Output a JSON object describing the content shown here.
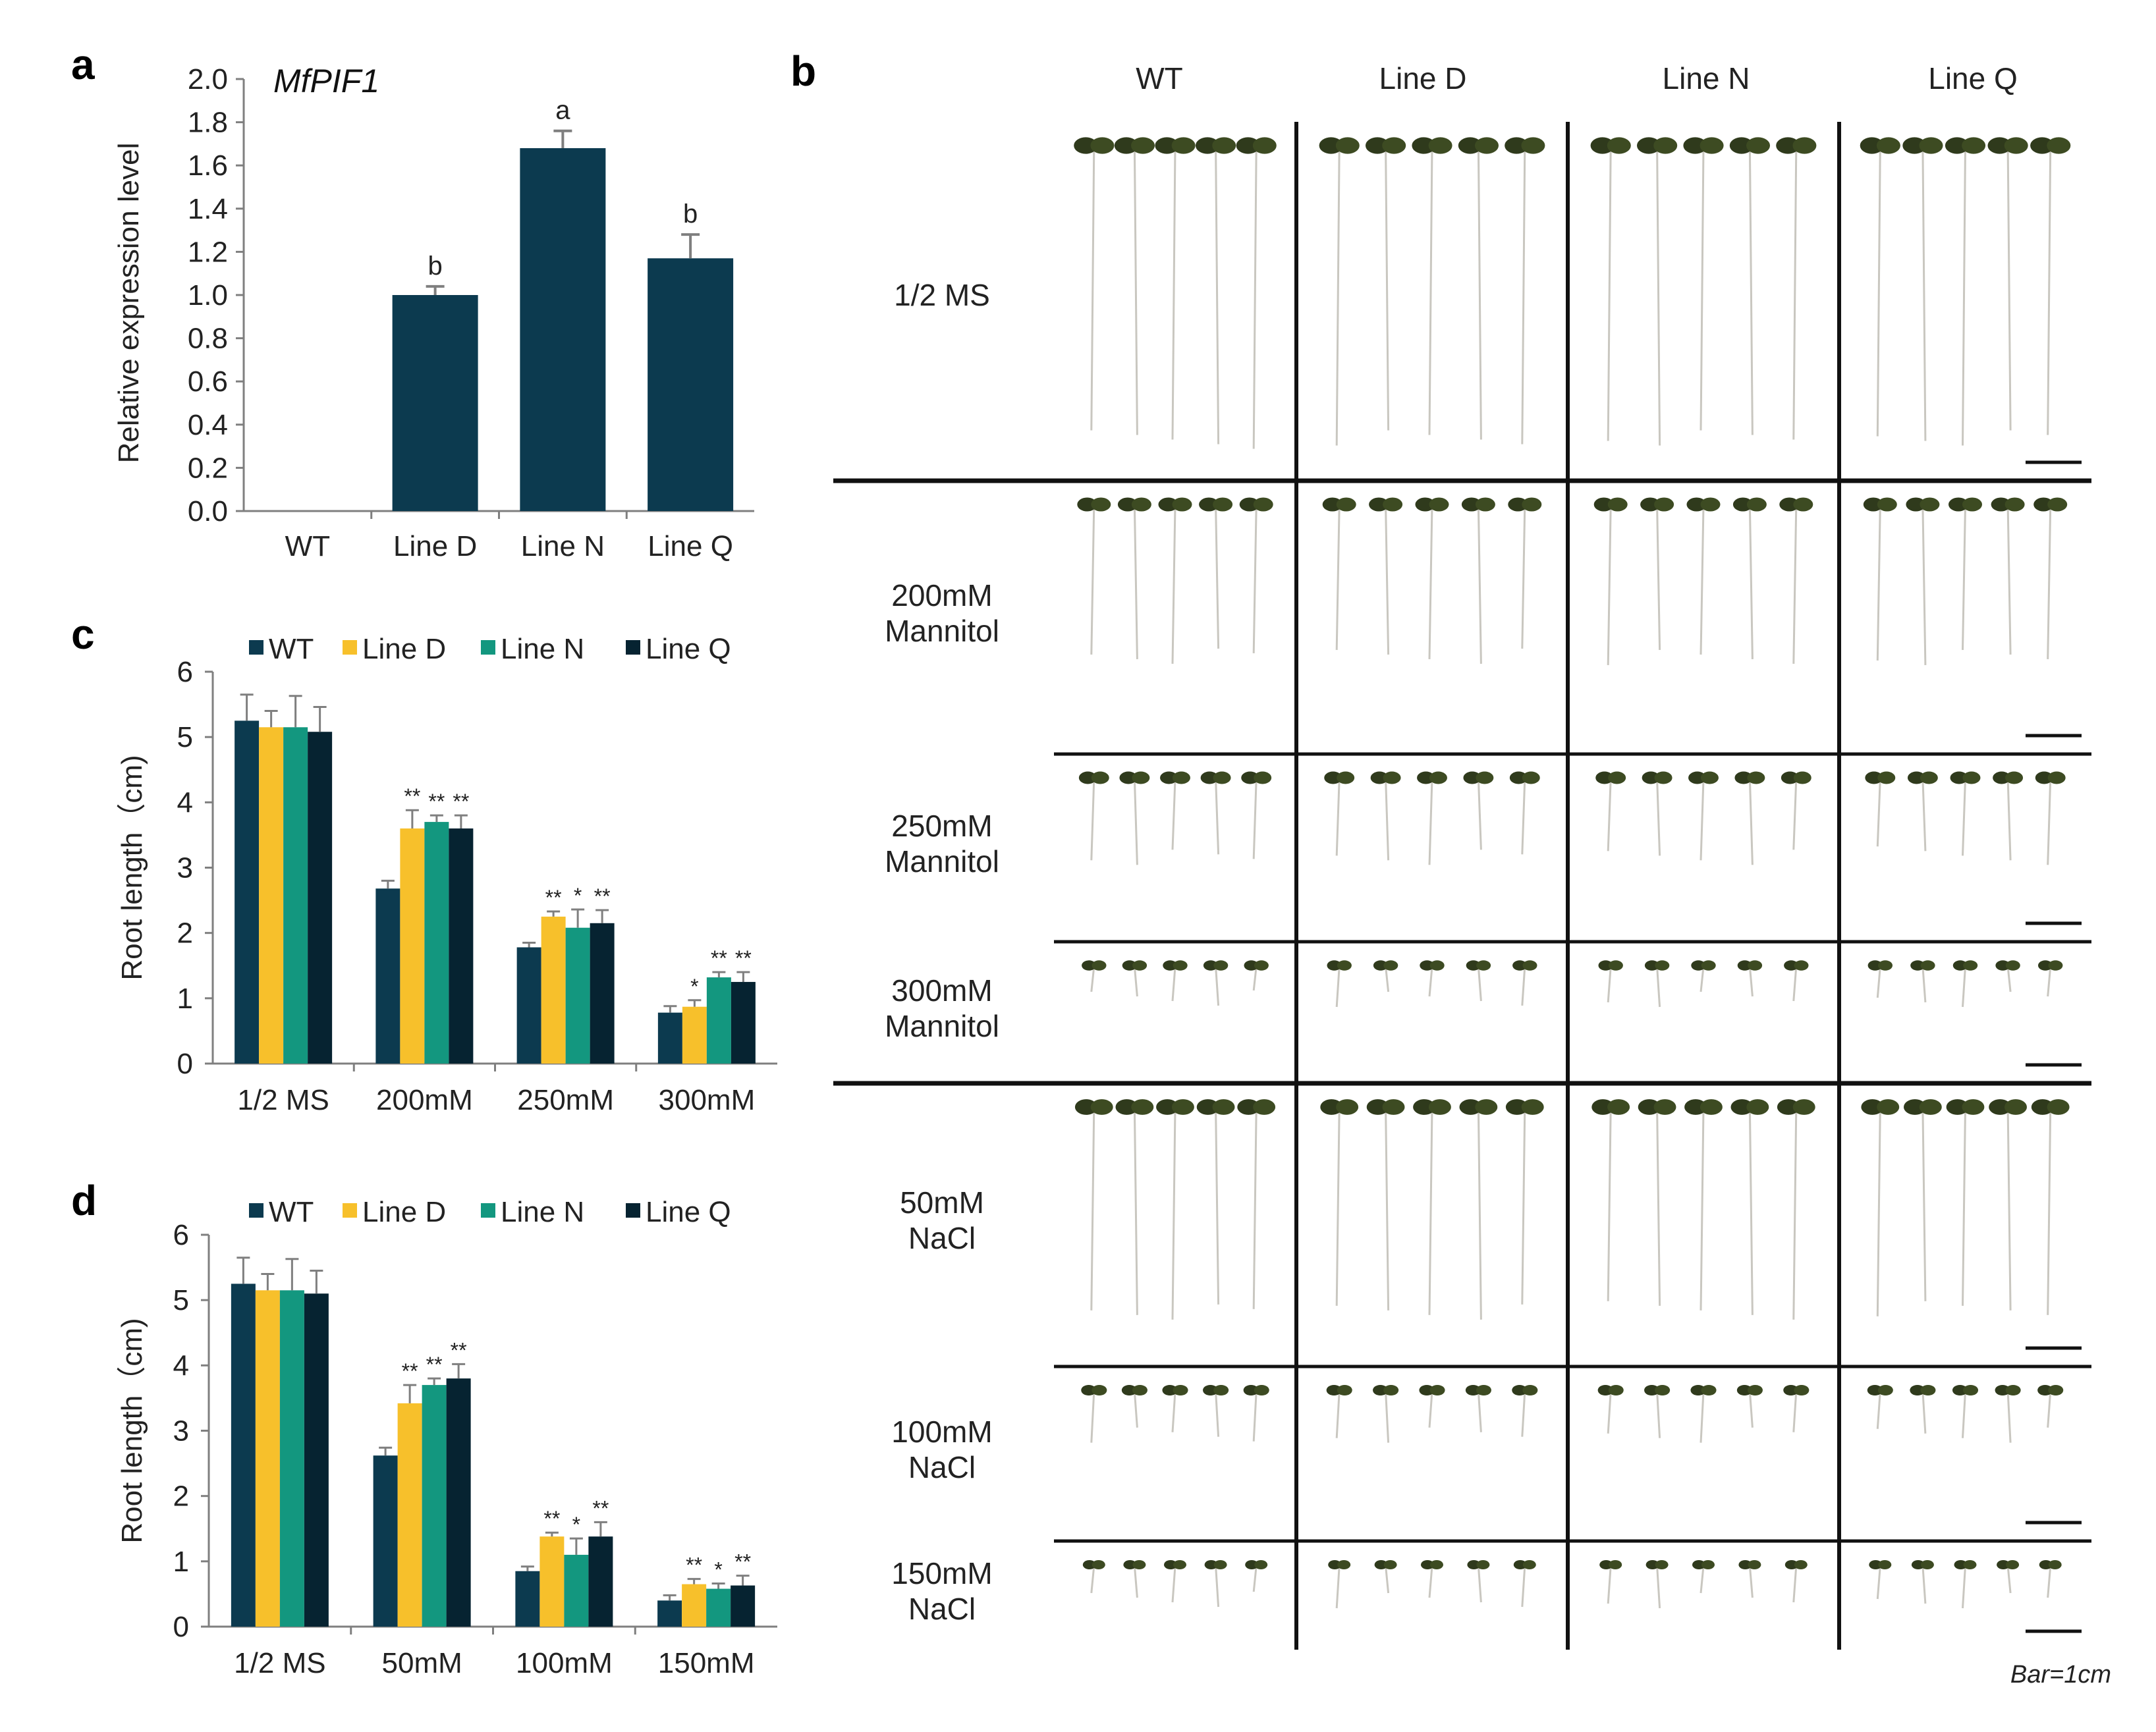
{
  "colors": {
    "wt": "#0c3a4f",
    "line_d": "#f7c02b",
    "line_n": "#13977f",
    "line_q": "#062331",
    "bar_single": "#0c3a4f",
    "axis": "#7f7f7f",
    "error": "#7f7f7f"
  },
  "panel_labels": {
    "a": "a",
    "b": "b",
    "c": "c",
    "d": "d"
  },
  "chart_data": [
    {
      "id": "a",
      "type": "bar",
      "title": "MfPIF1",
      "xlabel": "",
      "ylabel": "Relative expression level",
      "categories": [
        "WT",
        "Line D",
        "Line N",
        "Line Q"
      ],
      "values": [
        0.0,
        1.0,
        1.68,
        1.17
      ],
      "errors": [
        0.0,
        0.04,
        0.08,
        0.11
      ],
      "annotations": [
        "",
        "b",
        "a",
        "b"
      ],
      "ylim": [
        0,
        2.0
      ],
      "yticks": [
        "0.0",
        "0.2",
        "0.4",
        "0.6",
        "0.8",
        "1.0",
        "1.2",
        "1.4",
        "1.6",
        "1.8",
        "2.0"
      ],
      "grid": false
    },
    {
      "id": "c",
      "type": "bar",
      "xlabel": "",
      "ylabel": "Root length（cm)",
      "categories": [
        "1/2 MS",
        "200mM",
        "250mM",
        "300mM"
      ],
      "legend": [
        "WT",
        "Line D",
        "Line N",
        "Line Q"
      ],
      "legend_position": "top",
      "ylim": [
        0,
        6
      ],
      "yticks": [
        "0",
        "1",
        "2",
        "3",
        "4",
        "5",
        "6"
      ],
      "series": [
        {
          "name": "WT",
          "values": [
            5.25,
            2.68,
            1.78,
            0.78
          ],
          "errors": [
            0.4,
            0.12,
            0.07,
            0.1
          ],
          "sig": [
            "",
            "",
            "",
            ""
          ]
        },
        {
          "name": "Line D",
          "values": [
            5.15,
            3.6,
            2.25,
            0.87
          ],
          "errors": [
            0.25,
            0.28,
            0.08,
            0.1
          ],
          "sig": [
            "",
            "**",
            "**",
            "*"
          ]
        },
        {
          "name": "Line N",
          "values": [
            5.15,
            3.7,
            2.08,
            1.32
          ],
          "errors": [
            0.48,
            0.1,
            0.28,
            0.08
          ],
          "sig": [
            "",
            "**",
            "*",
            "**"
          ]
        },
        {
          "name": "Line Q",
          "values": [
            5.08,
            3.6,
            2.15,
            1.25
          ],
          "errors": [
            0.38,
            0.2,
            0.2,
            0.15
          ],
          "sig": [
            "",
            "**",
            "**",
            "**"
          ]
        }
      ],
      "grid": false
    },
    {
      "id": "d",
      "type": "bar",
      "xlabel": "",
      "ylabel": "Root length（cm)",
      "categories": [
        "1/2 MS",
        "50mM",
        "100mM",
        "150mM"
      ],
      "legend": [
        "WT",
        "Line D",
        "Line N",
        "Line Q"
      ],
      "legend_position": "top",
      "ylim": [
        0,
        6
      ],
      "yticks": [
        "0",
        "1",
        "2",
        "3",
        "4",
        "5",
        "6"
      ],
      "series": [
        {
          "name": "WT",
          "values": [
            5.25,
            2.62,
            0.85,
            0.4
          ],
          "errors": [
            0.4,
            0.12,
            0.07,
            0.08
          ],
          "sig": [
            "",
            "",
            "",
            ""
          ]
        },
        {
          "name": "Line D",
          "values": [
            5.15,
            3.42,
            1.38,
            0.65
          ],
          "errors": [
            0.25,
            0.28,
            0.06,
            0.08
          ],
          "sig": [
            "",
            "**",
            "**",
            "**"
          ]
        },
        {
          "name": "Line N",
          "values": [
            5.15,
            3.7,
            1.1,
            0.58
          ],
          "errors": [
            0.48,
            0.1,
            0.25,
            0.08
          ],
          "sig": [
            "",
            "**",
            "*",
            "*"
          ]
        },
        {
          "name": "Line Q",
          "values": [
            5.1,
            3.8,
            1.38,
            0.63
          ],
          "errors": [
            0.35,
            0.22,
            0.22,
            0.15
          ],
          "sig": [
            "",
            "**",
            "**",
            "**"
          ]
        }
      ],
      "grid": false
    }
  ],
  "panel_b": {
    "columns": [
      "WT",
      "Line D",
      "Line N",
      "Line Q"
    ],
    "rows": [
      {
        "line1": "1/2 MS",
        "line2": "",
        "seedling_vigor": 1.0
      },
      {
        "line1": "200mM",
        "line2": "Mannitol",
        "seedling_vigor": 0.7
      },
      {
        "line1": "250mM",
        "line2": "Mannitol",
        "seedling_vigor": 0.55
      },
      {
        "line1": "300mM",
        "line2": "Mannitol",
        "seedling_vigor": 0.3
      },
      {
        "line1": "50mM",
        "line2": "NaCl",
        "seedling_vigor": 0.9
      },
      {
        "line1": "100mM",
        "line2": "NaCl",
        "seedling_vigor": 0.35
      },
      {
        "line1": "150mM",
        "line2": "NaCl",
        "seedling_vigor": 0.2
      }
    ],
    "scale_note": "Bar=1cm"
  }
}
